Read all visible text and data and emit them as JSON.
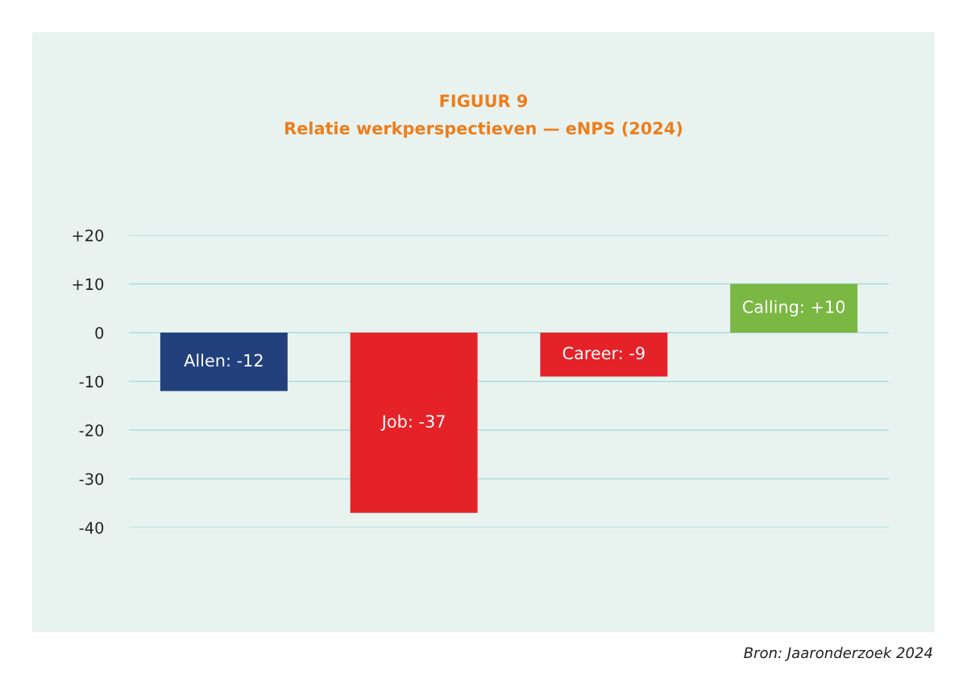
{
  "chart_data": {
    "type": "bar",
    "title": "FIGUUR 9",
    "subtitle": "Relatie werkperspectieven — eNPS (2024)",
    "categories": [
      null,
      null,
      null,
      null
    ],
    "values": [
      -12,
      -37,
      -9,
      10
    ],
    "colors": [
      "#21407c",
      "#e52228",
      "#e52228",
      "#7ab743"
    ],
    "value_labels": [
      "Allen: -12",
      "Job: -37",
      "Career: -9",
      "Calling: +10"
    ],
    "ylim": [
      -40,
      20
    ],
    "yticks": [
      {
        "value": 20,
        "label": "+20"
      },
      {
        "value": 10,
        "label": "+10"
      },
      0,
      {
        "value": -10,
        "label": "-10"
      },
      {
        "value": -20,
        "label": "-20"
      },
      {
        "value": -30,
        "label": "-30"
      },
      {
        "value": -40,
        "label": "-40"
      }
    ],
    "grid": "y",
    "annotations": [
      "Bron: Jaaronderzoek 2024"
    ]
  }
}
